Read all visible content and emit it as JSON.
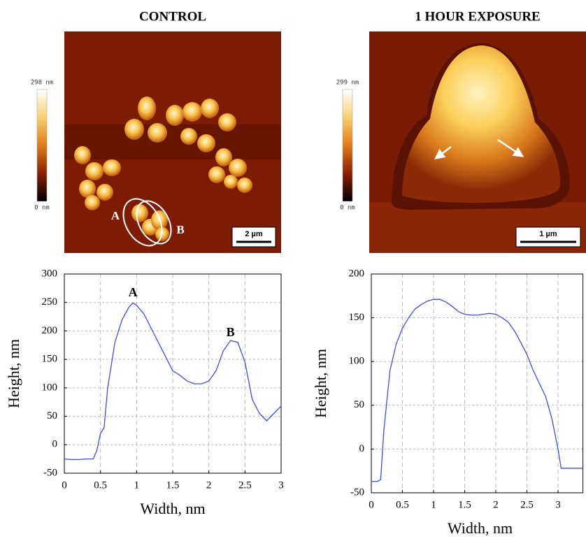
{
  "panels": [
    {
      "title": "CONTROL",
      "colorbar_max": "298 nm",
      "colorbar_min": "0 nm",
      "scale_bar": "2 µm",
      "markers": [
        "A",
        "B"
      ]
    },
    {
      "title": "1 HOUR EXPOSURE",
      "colorbar_max": "299 nm",
      "colorbar_min": "0 nm",
      "scale_bar": "1 µm"
    }
  ],
  "chart_data": [
    {
      "type": "line",
      "x_label": "Width, nm",
      "y_label": "Height, nm",
      "annotations": [
        "A",
        "B"
      ],
      "x": [
        0,
        0.1,
        0.2,
        0.3,
        0.4,
        0.45,
        0.5,
        0.55,
        0.6,
        0.7,
        0.8,
        0.9,
        0.95,
        1.0,
        1.1,
        1.2,
        1.3,
        1.4,
        1.5,
        1.6,
        1.7,
        1.8,
        1.9,
        2.0,
        2.1,
        2.2,
        2.3,
        2.4,
        2.5,
        2.6,
        2.7,
        2.8,
        2.9,
        3.0
      ],
      "series": [
        {
          "color": "#3b4fe0",
          "values": [
            -25,
            -26,
            -26,
            -25,
            -25,
            -10,
            20,
            30,
            100,
            180,
            220,
            243,
            249,
            245,
            230,
            205,
            180,
            155,
            130,
            122,
            112,
            107,
            107,
            112,
            130,
            165,
            183,
            180,
            145,
            80,
            55,
            42,
            55,
            68
          ]
        }
      ],
      "xlim": [
        0,
        3
      ],
      "xticks": [
        0,
        0.5,
        1,
        1.5,
        2,
        2.5,
        3
      ],
      "ylim": [
        -50,
        300
      ],
      "yticks": [
        -50,
        0,
        50,
        100,
        150,
        200,
        250,
        300
      ],
      "grid": true
    },
    {
      "type": "line",
      "x_label": "Width, nm",
      "y_label": "Height, nm",
      "x": [
        0,
        0.1,
        0.15,
        0.2,
        0.3,
        0.4,
        0.5,
        0.6,
        0.7,
        0.8,
        0.9,
        1.0,
        1.1,
        1.2,
        1.3,
        1.4,
        1.5,
        1.6,
        1.7,
        1.8,
        1.9,
        2.0,
        2.1,
        2.2,
        2.3,
        2.4,
        2.5,
        2.6,
        2.7,
        2.8,
        2.9,
        3.0,
        3.05,
        3.2,
        3.4
      ],
      "series": [
        {
          "color": "#3b4fe0",
          "values": [
            -37,
            -37,
            -35,
            20,
            90,
            120,
            138,
            150,
            160,
            165,
            169,
            171,
            171,
            168,
            163,
            157,
            154,
            153,
            153,
            154,
            155,
            154,
            150,
            145,
            135,
            122,
            108,
            90,
            75,
            60,
            35,
            0,
            -22,
            -22,
            -22
          ]
        }
      ],
      "xlim": [
        0,
        3.4
      ],
      "xticks": [
        0,
        0.5,
        1,
        1.5,
        2,
        2.5,
        3
      ],
      "ylim": [
        -50,
        200
      ],
      "yticks": [
        -50,
        0,
        50,
        100,
        150,
        200
      ],
      "grid": true
    }
  ]
}
